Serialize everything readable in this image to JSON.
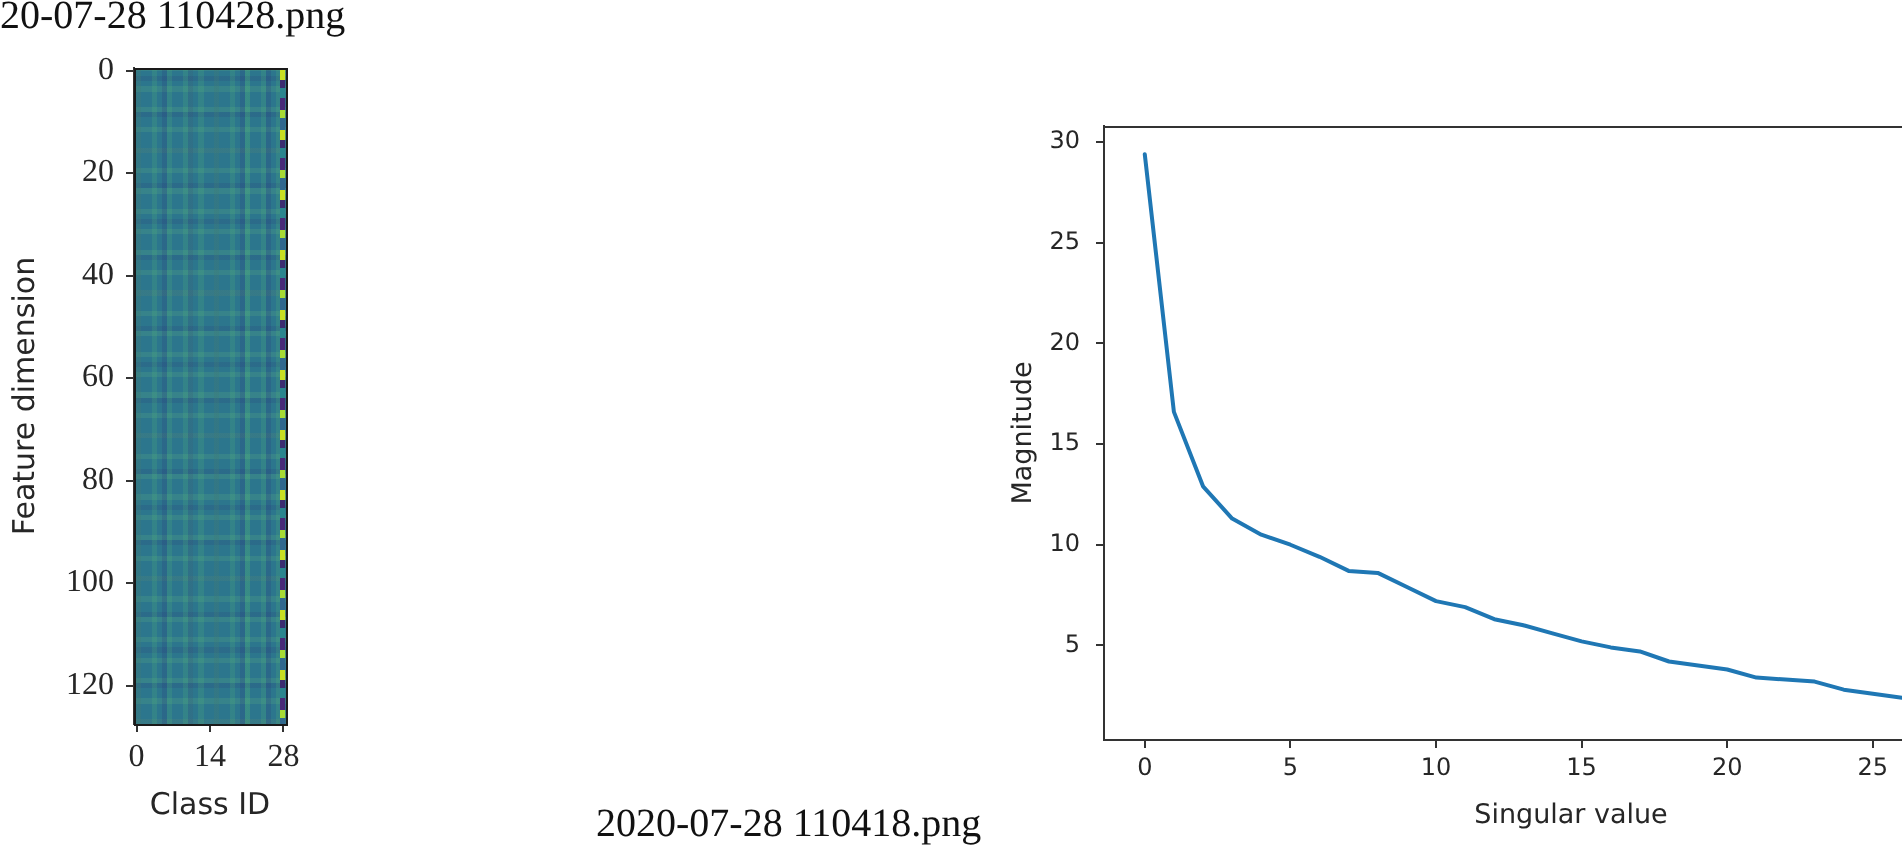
{
  "chart_data": [
    {
      "type": "heatmap",
      "xlabel": "Class ID",
      "ylabel": "Feature dimension",
      "xlim": [
        -0.5,
        28.5
      ],
      "xticks": [
        0,
        14,
        28
      ],
      "ylim": [
        127.5,
        -0.5
      ],
      "yticks": [
        0,
        20,
        40,
        60,
        80,
        100,
        120
      ],
      "annotations": [
        "20-07-28 110428.png",
        "2020-07-28 110418.png"
      ]
    },
    {
      "type": "line",
      "xlabel": "Singular value",
      "ylabel": "Magnitude",
      "x": [
        0,
        1,
        2,
        3,
        4,
        5,
        6,
        7,
        8,
        9,
        10,
        11,
        12,
        13,
        14,
        15,
        16,
        17,
        18,
        19,
        20,
        21,
        22,
        23,
        24,
        25,
        26
      ],
      "values": [
        29.4,
        16.6,
        12.9,
        11.3,
        10.5,
        10.0,
        9.4,
        8.7,
        8.6,
        7.9,
        7.2,
        6.9,
        6.3,
        6.0,
        5.6,
        5.2,
        4.9,
        4.7,
        4.2,
        4.0,
        3.8,
        3.4,
        3.3,
        3.2,
        2.8,
        2.6,
        2.4
      ],
      "color": "#1f77b4",
      "xlim": [
        -1.4,
        26
      ],
      "xticks": [
        0,
        5,
        10,
        15,
        20,
        25
      ],
      "ylim": [
        0.3,
        30.8
      ],
      "yticks": [
        5,
        10,
        15,
        20,
        25,
        30
      ]
    }
  ]
}
